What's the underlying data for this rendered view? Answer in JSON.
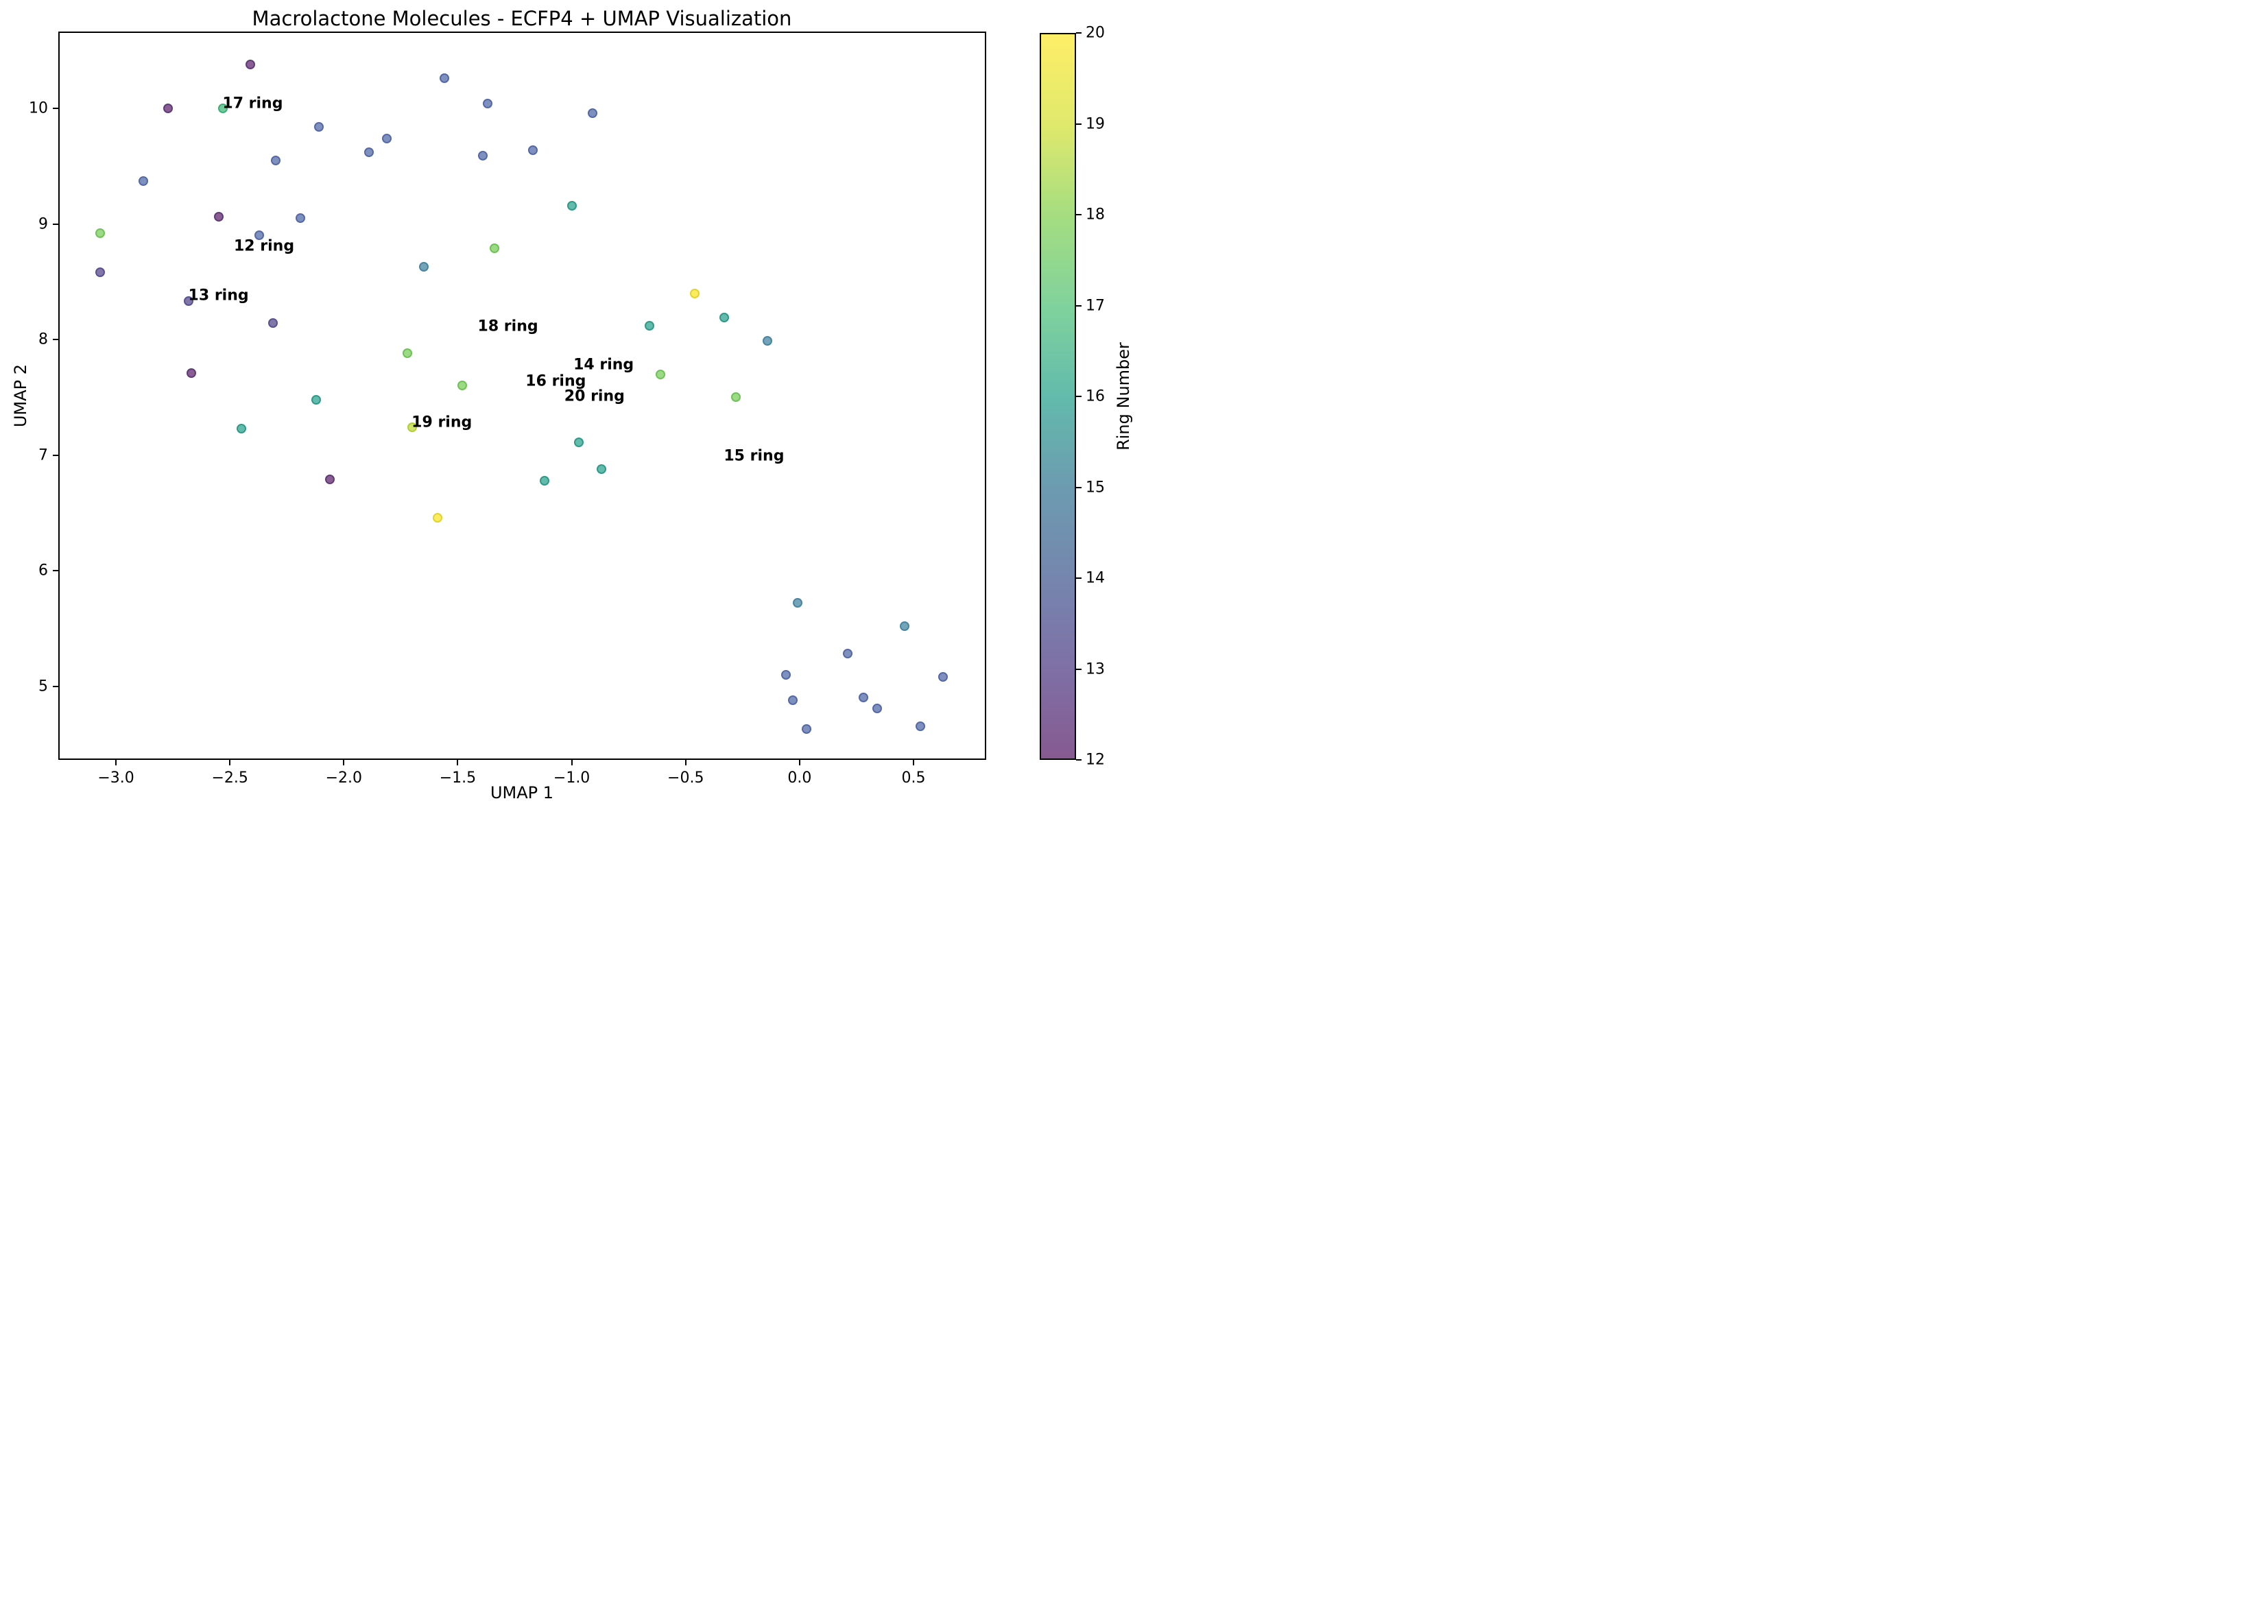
{
  "title": "Macrolactone Molecules - ECFP4 + UMAP Visualization",
  "chart_data": {
    "type": "scatter",
    "title": "Macrolactone Molecules - ECFP4 + UMAP Visualization",
    "xlabel": "UMAP 1",
    "ylabel": "UMAP 2",
    "xlim": [
      -3.253,
      0.819
    ],
    "ylim": [
      4.362,
      10.665
    ],
    "grid": false,
    "legend": "none",
    "marker_alpha": 0.7,
    "colormap": "viridis",
    "xticks": [
      -3.0,
      -2.5,
      -2.0,
      -1.5,
      -1.0,
      -0.5,
      0.0,
      0.5
    ],
    "xtick_labels": [
      "−3.0",
      "−2.5",
      "−2.0",
      "−1.5",
      "−1.0",
      "−0.5",
      "0.0",
      "0.5"
    ],
    "yticks": [
      5,
      6,
      7,
      8,
      9,
      10
    ],
    "ytick_labels": [
      "5",
      "6",
      "7",
      "8",
      "9",
      "10"
    ],
    "colorbar": {
      "label": "Ring Number",
      "vmin": 12,
      "vmax": 20,
      "ticks": [
        12,
        13,
        14,
        15,
        16,
        17,
        18,
        19,
        20
      ],
      "stops": [
        "#865a91",
        "#7e70a5",
        "#7586ae",
        "#6c9bb0",
        "#62bbac",
        "#80d29c",
        "#a5dd80",
        "#e0e96c",
        "#feee67"
      ]
    },
    "series": [
      {
        "name": "12 ring",
        "ring": 12,
        "fill": "#8a5d94",
        "edge": "#603c77",
        "points": [
          [
            -2.41,
            10.38
          ],
          [
            -2.77,
            10.0
          ],
          [
            -2.55,
            9.06
          ],
          [
            -2.67,
            7.71
          ],
          [
            -2.06,
            6.79
          ]
        ]
      },
      {
        "name": "13 ring",
        "ring": 13,
        "fill": "#8277a8",
        "edge": "#585293",
        "points": [
          [
            -3.07,
            8.58
          ],
          [
            -2.68,
            8.33
          ],
          [
            -2.31,
            8.14
          ]
        ]
      },
      {
        "name": "14 ring",
        "ring": 14,
        "fill": "#7e90bd",
        "edge": "#5568a8",
        "points": [
          [
            -1.56,
            10.26
          ],
          [
            -1.37,
            10.04
          ],
          [
            -0.91,
            9.96
          ],
          [
            -2.11,
            9.84
          ],
          [
            -1.81,
            9.74
          ],
          [
            -1.89,
            9.62
          ],
          [
            -1.17,
            9.64
          ],
          [
            -1.39,
            9.59
          ],
          [
            -2.3,
            9.55
          ],
          [
            -2.88,
            9.37
          ],
          [
            -2.19,
            9.05
          ],
          [
            -2.37,
            8.9
          ],
          [
            0.21,
            5.28
          ],
          [
            -0.06,
            5.1
          ],
          [
            0.63,
            5.08
          ],
          [
            0.28,
            4.9
          ],
          [
            -0.03,
            4.88
          ],
          [
            0.34,
            4.81
          ],
          [
            0.53,
            4.65
          ],
          [
            0.03,
            4.63
          ]
        ]
      },
      {
        "name": "15 ring",
        "ring": 15,
        "fill": "#74a4ba",
        "edge": "#4a85a0",
        "points": [
          [
            -1.65,
            8.63
          ],
          [
            -0.14,
            7.99
          ],
          [
            -0.01,
            5.72
          ],
          [
            0.46,
            5.52
          ]
        ]
      },
      {
        "name": "16 ring",
        "ring": 16,
        "fill": "#62bbac",
        "edge": "#2f9a88",
        "points": [
          [
            -1.0,
            9.16
          ],
          [
            -0.33,
            8.19
          ],
          [
            -0.66,
            8.12
          ],
          [
            -2.12,
            7.48
          ],
          [
            -2.45,
            7.23
          ],
          [
            -0.97,
            7.11
          ],
          [
            -0.87,
            6.88
          ],
          [
            -1.12,
            6.78
          ]
        ]
      },
      {
        "name": "17 ring",
        "ring": 17,
        "fill": "#72cb9d",
        "edge": "#3fae77",
        "points": [
          [
            -2.53,
            10.0
          ]
        ]
      },
      {
        "name": "18 ring",
        "ring": 18,
        "fill": "#9cda85",
        "edge": "#6fc256",
        "points": [
          [
            -3.07,
            8.92
          ],
          [
            -1.34,
            8.79
          ],
          [
            -1.72,
            7.88
          ],
          [
            -0.61,
            7.7
          ],
          [
            -1.48,
            7.6
          ],
          [
            -0.28,
            7.5
          ]
        ]
      },
      {
        "name": "19 ring",
        "ring": 19,
        "fill": "#cfe36a",
        "edge": "#b1cf38",
        "points": [
          [
            -1.7,
            7.24
          ]
        ]
      },
      {
        "name": "20 ring",
        "ring": 20,
        "fill": "#fbec5f",
        "edge": "#e3d32e",
        "points": [
          [
            -0.46,
            8.4
          ],
          [
            -1.59,
            6.46
          ]
        ]
      }
    ],
    "annotations": [
      {
        "text": "17 ring",
        "x": -2.4,
        "y": 10.04
      },
      {
        "text": "12 ring",
        "x": -2.35,
        "y": 8.81
      },
      {
        "text": "13 ring",
        "x": -2.55,
        "y": 8.38
      },
      {
        "text": "18 ring",
        "x": -1.28,
        "y": 8.11
      },
      {
        "text": "14 ring",
        "x": -0.86,
        "y": 7.78
      },
      {
        "text": "16 ring",
        "x": -1.07,
        "y": 7.64
      },
      {
        "text": "20 ring",
        "x": -0.9,
        "y": 7.51
      },
      {
        "text": "19 ring",
        "x": -1.57,
        "y": 7.28
      },
      {
        "text": "15 ring",
        "x": -0.2,
        "y": 6.99
      }
    ]
  }
}
